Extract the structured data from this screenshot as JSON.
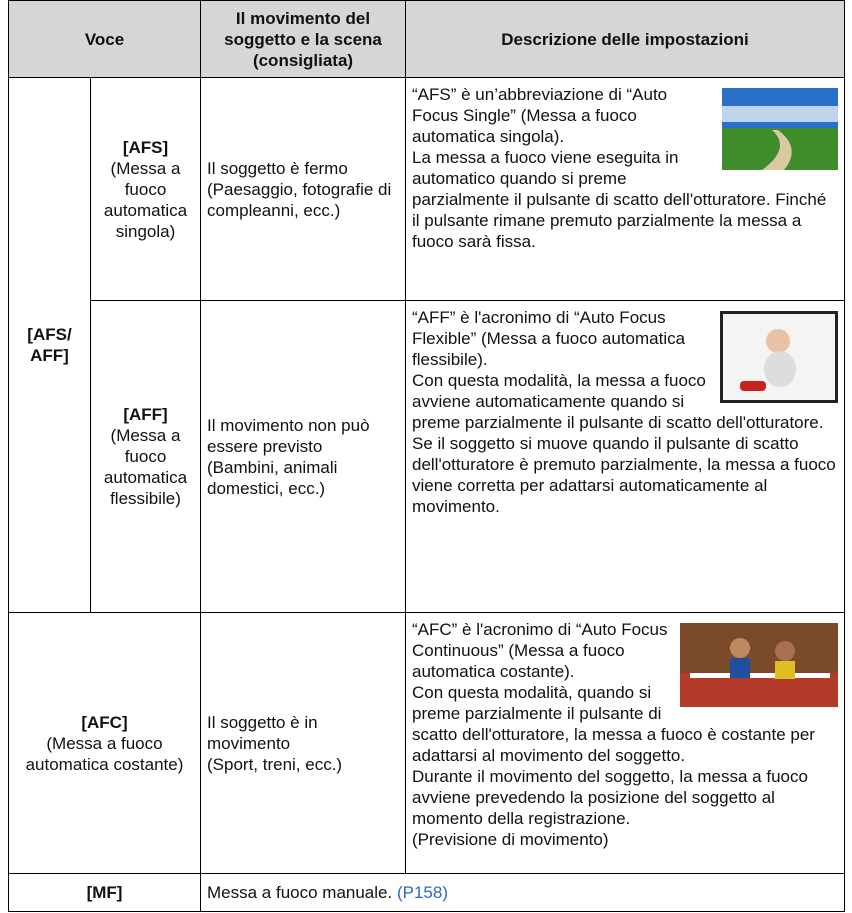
{
  "table": {
    "header": [
      "Voce",
      "Il movimento del soggetto e la scena (consigliata)",
      "Descrizione delle impostazioni"
    ],
    "group": "[AFS/ AFF]",
    "rows": [
      {
        "mode": "[AFS]",
        "mode_desc": "(Messa a fuoco automatica singola)",
        "subject": [
          "Il soggetto è fermo",
          "(Paesaggio, fotografie di compleanni, ecc.)"
        ],
        "description": [
          "“AFS” è un’abbreviazione di “Auto Focus Single” (Messa a fuoco automatica singola).",
          "La messa a fuoco viene eseguita in automatico quando si preme parzialmente il pulsante di scatto dell'otturatore. Finché il pulsante rimane premuto parzialmente la messa a fuoco sarà fissa."
        ]
      },
      {
        "mode": "[AFF]",
        "mode_desc": "(Messa a fuoco automatica flessibile)",
        "subject": [
          "Il movimento non può essere previsto",
          "(Bambini, animali domestici, ecc.)"
        ],
        "description": [
          "“AFF” è l'acronimo di “Auto Focus Flexible” (Messa a fuoco automatica flessibile).",
          "Con questa modalità, la messa a fuoco avviene automaticamente quando si preme parzialmente il pulsante di scatto dell'otturatore.",
          "Se il soggetto si muove quando il pulsante di scatto dell'otturatore è premuto parzialmente, la messa a fuoco viene corretta per adattarsi automaticamente al movimento."
        ]
      },
      {
        "mode": "[AFC]",
        "mode_desc": "(Messa a fuoco automatica costante)",
        "subject": [
          "Il soggetto è in movimento",
          "(Sport, treni, ecc.)"
        ],
        "description": [
          "“AFC” è l'acronimo di “Auto Focus Continuous” (Messa a fuoco automatica costante).",
          "Con questa modalità, quando si preme parzialmente il pulsante di scatto dell'otturatore, la messa a fuoco è costante per adattarsi al movimento del soggetto.",
          "Durante il movimento del soggetto, la messa a fuoco avviene prevedendo la posizione del soggetto al momento della registrazione.",
          "(Previsione di movimento)"
        ]
      }
    ],
    "mf": {
      "mode": "[MF]",
      "text": "Messa a fuoco manuale.",
      "link": "(P158)"
    }
  }
}
